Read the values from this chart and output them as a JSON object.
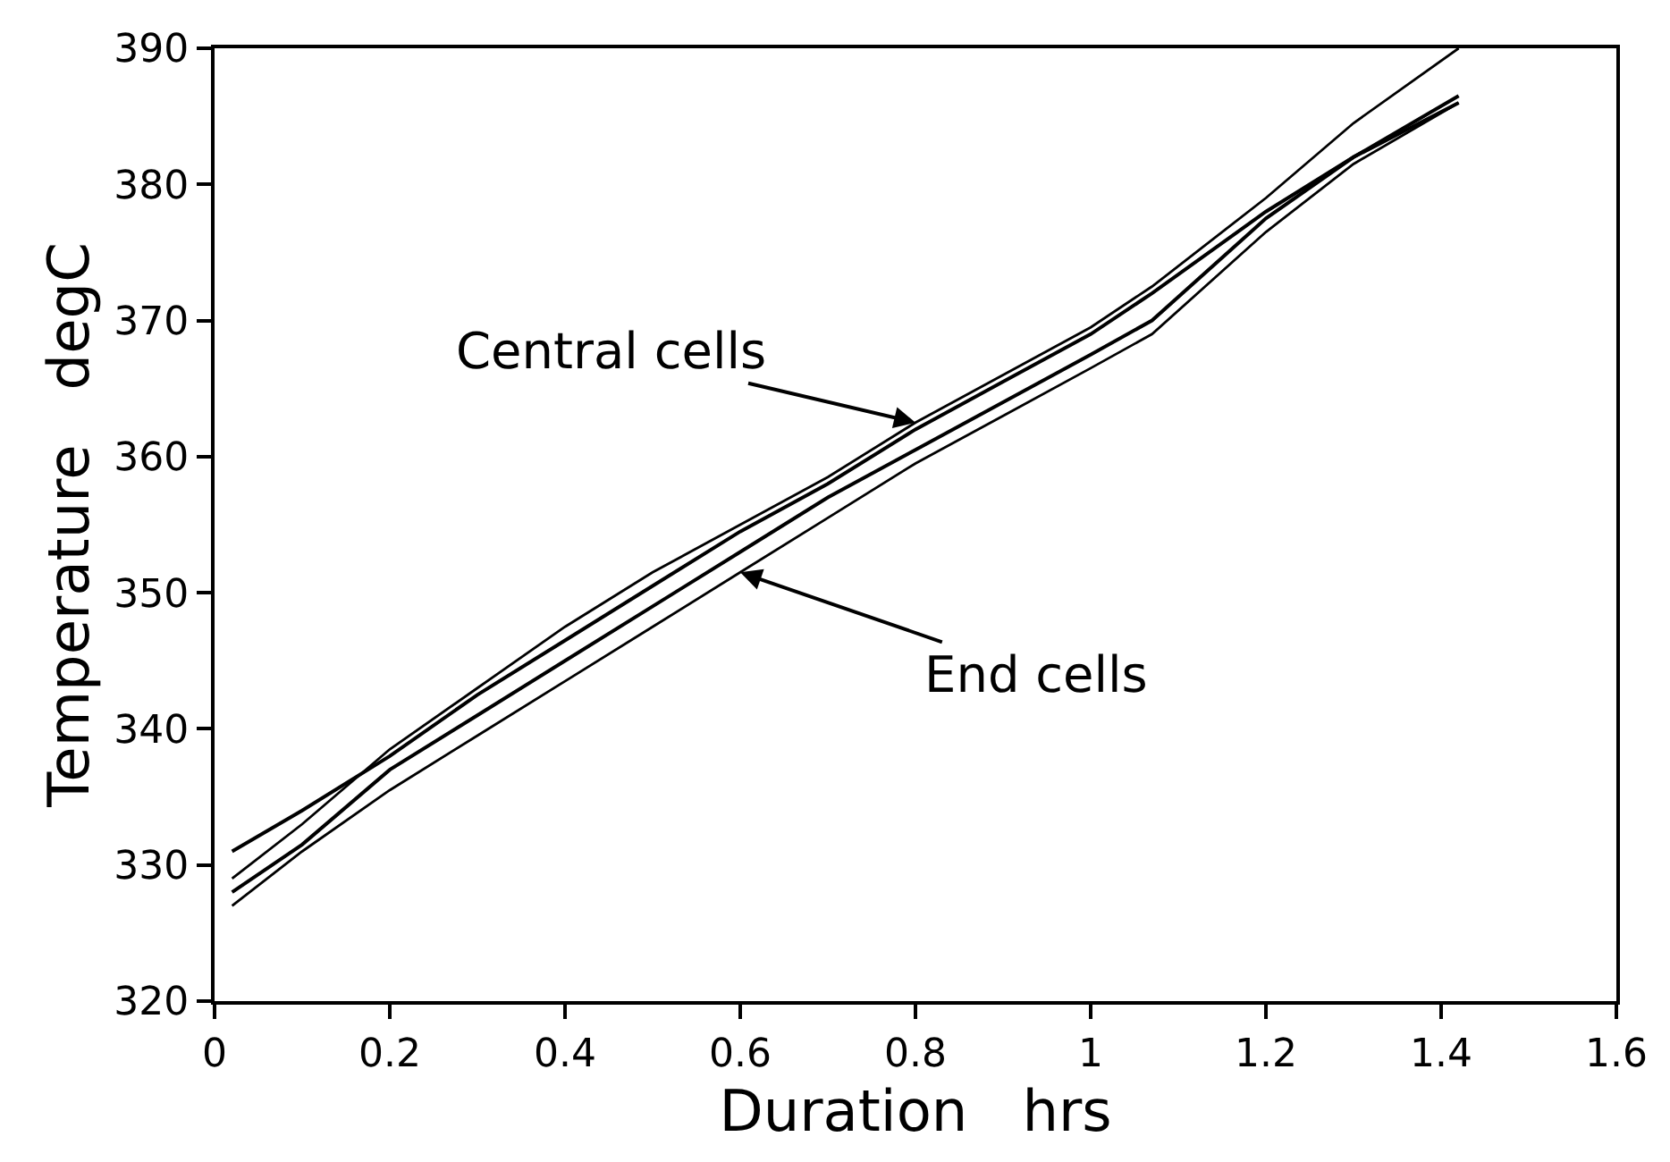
{
  "chart_data": {
    "type": "line",
    "xlabel": "Duration   hrs",
    "ylabel": "Temperature   degC",
    "x": [
      0.02,
      0.1,
      0.2,
      0.3,
      0.4,
      0.5,
      0.6,
      0.7,
      0.8,
      0.9,
      1.0,
      1.07,
      1.2,
      1.3,
      1.42
    ],
    "series": [
      {
        "color": "#000000",
        "values": [
          329,
          333,
          338.5,
          343,
          347.5,
          351.5,
          355,
          358.5,
          362.5,
          366,
          369.5,
          372.5,
          379,
          384.5,
          390
        ]
      },
      {
        "color": "#000000",
        "values": [
          331,
          334,
          338,
          342.5,
          346.5,
          350.5,
          354.5,
          358,
          362,
          365.5,
          369,
          372,
          378,
          382,
          386.5
        ]
      },
      {
        "color": "#000000",
        "values": [
          328,
          331.5,
          337,
          341,
          345,
          349,
          353,
          357,
          360.5,
          364,
          367.5,
          370,
          377.5,
          382,
          386
        ]
      },
      {
        "color": "#000000",
        "values": [
          327,
          331,
          335.5,
          339.5,
          343.5,
          347.5,
          351.5,
          355.5,
          359.5,
          363,
          366.5,
          369,
          376.5,
          381.5,
          386
        ]
      }
    ],
    "annotations": [
      {
        "text": "Central cells",
        "x": 0.8,
        "y": 362.5
      },
      {
        "text": "End cells",
        "x": 0.6,
        "y": 351.5
      }
    ],
    "xlim": [
      0,
      1.6
    ],
    "xticks": [
      0,
      0.2,
      0.4,
      0.6,
      0.8,
      1,
      1.2,
      1.4,
      1.6
    ],
    "ylim": [
      320,
      390
    ],
    "yticks": [
      320,
      330,
      340,
      350,
      360,
      370,
      380,
      390
    ],
    "marker": "none",
    "line_style": "solid"
  }
}
